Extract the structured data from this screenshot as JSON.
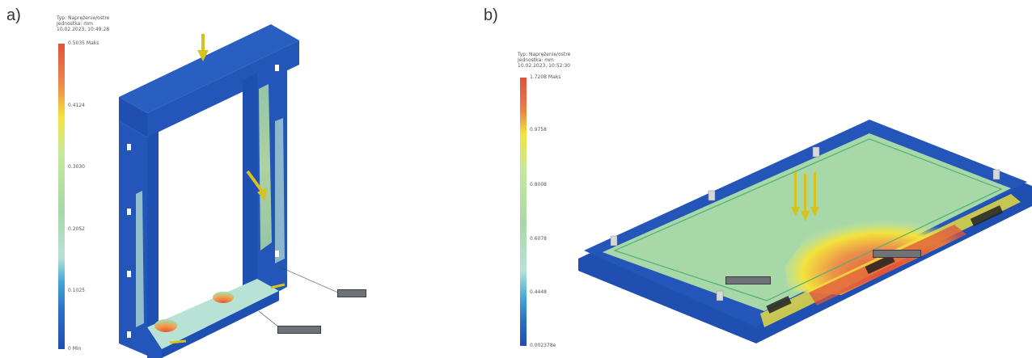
{
  "panels": [
    {
      "label": "a)",
      "legend": {
        "header": [
          "Typ: Naprężenie/ostre",
          "Jednostka: mm",
          "10.02.2023, 10:49:28"
        ],
        "max_label": "0.5035 Maks",
        "ticks": [
          "0.4124",
          "0.3030",
          "0.2052",
          "0.1025"
        ],
        "min_label": "0 Min"
      },
      "callouts": [
        "",
        ""
      ]
    },
    {
      "label": "b)",
      "legend": {
        "header": [
          "Typ: Naprężenie/ostre",
          "Jednostka: mm",
          "10.02.2023, 10:52:30"
        ],
        "max_label": "1.7208 Maks",
        "ticks": [
          "0.9758",
          "0.8008",
          "0.6078",
          "0.4448"
        ],
        "min_label": "0.002378e"
      },
      "callouts": [
        "",
        ""
      ]
    }
  ],
  "colors": {
    "max": "#e0533c",
    "high": "#f3e33c",
    "mid": "#a8d8a8",
    "low": "#43a8d6",
    "min": "#1f4fb0",
    "structure": "#2356b8",
    "arrow": "#d6c21c"
  }
}
